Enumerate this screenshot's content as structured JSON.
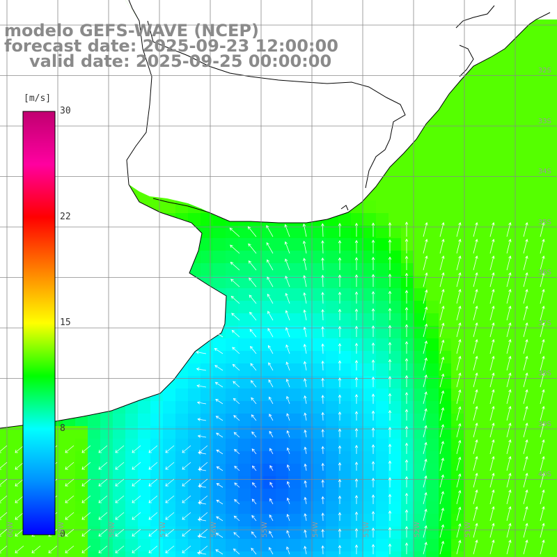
{
  "title": {
    "line1": "modelo GEFS-WAVE (NCEP)",
    "line2": "forecast date: 2025-09-23 12:00:00",
    "line3": "valid date: 2025-09-25 00:00:00"
  },
  "colorbar": {
    "unit": "[m/s]",
    "min": 0,
    "max": 30,
    "ticks": [
      "30",
      "22",
      "15",
      "8",
      "0"
    ],
    "tick_values": [
      30,
      22,
      15,
      8,
      0
    ],
    "colors": [
      "#0000ff",
      "#0090ff",
      "#00ffff",
      "#00ff00",
      "#ffff00",
      "#ff8000",
      "#ff0000",
      "#ff00a0",
      "#c00070"
    ]
  },
  "colors": {
    "land": "#ffffff",
    "coast": "#000000",
    "grid": "#888888",
    "arrow": "#ffffff",
    "title": "#8a8a8a"
  },
  "lat_labels": [
    "32S",
    "33S",
    "34S",
    "35S",
    "36S",
    "37S",
    "38S",
    "39S",
    "40S"
  ],
  "lon_labels": [
    "60W",
    "59W",
    "58W",
    "57W",
    "56W",
    "55W",
    "54W",
    "53W",
    "52W",
    "51W"
  ],
  "wind": {
    "description_units": "m/s"
  }
}
